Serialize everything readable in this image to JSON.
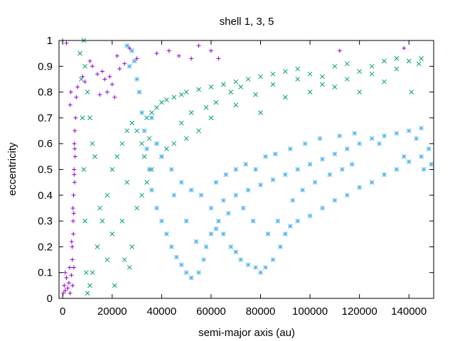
{
  "chart_data": {
    "type": "scatter",
    "title": "shell 1, 3, 5",
    "xlabel": "semi-major axis (au)",
    "ylabel": "eccentricity",
    "xlim": [
      -1500,
      150000
    ],
    "ylim": [
      0,
      1
    ],
    "xticks": [
      0,
      20000,
      40000,
      60000,
      80000,
      100000,
      120000,
      140000
    ],
    "xtick_labels": [
      "0",
      "20000",
      "40000",
      "60000",
      "80000",
      "100000",
      "120000",
      "140000"
    ],
    "yticks": [
      0,
      0.1,
      0.2,
      0.3,
      0.4,
      0.5,
      0.6,
      0.7,
      0.8,
      0.9,
      1
    ],
    "ytick_labels": [
      "0",
      "0.1",
      "0.2",
      "0.3",
      "0.4",
      "0.5",
      "0.6",
      "0.7",
      "0.8",
      "0.9",
      "1"
    ],
    "grid": false,
    "legend": "none",
    "series": [
      {
        "marker": "plus",
        "color": "#9400d3",
        "points": [
          [
            200,
            0.02
          ],
          [
            600,
            0.05
          ],
          [
            1000,
            0.03
          ],
          [
            1500,
            0.08
          ],
          [
            2000,
            0.04
          ],
          [
            2500,
            0.06
          ],
          [
            3000,
            0.02
          ],
          [
            3500,
            0.09
          ],
          [
            4000,
            0.05
          ],
          [
            4500,
            0.12
          ],
          [
            3800,
            0.2
          ],
          [
            4200,
            0.3
          ],
          [
            4400,
            0.4
          ],
          [
            4600,
            0.5
          ],
          [
            4700,
            0.6
          ],
          [
            4300,
            0.25
          ],
          [
            4800,
            0.45
          ],
          [
            5000,
            0.55
          ],
          [
            3900,
            0.15
          ],
          [
            4100,
            0.35
          ],
          [
            4900,
            0.65
          ],
          [
            5200,
            0.7
          ],
          [
            3000,
            0.75
          ],
          [
            3300,
            0.8
          ],
          [
            1000,
            0.1
          ],
          [
            2800,
            0.12
          ],
          [
            3600,
            0.22
          ],
          [
            4450,
            0.33
          ],
          [
            4650,
            0.48
          ],
          [
            4850,
            0.58
          ],
          [
            0,
            1.0
          ],
          [
            1500,
            0.99
          ],
          [
            5500,
            0.78
          ],
          [
            6000,
            0.82
          ],
          [
            8000,
            0.86
          ],
          [
            9000,
            0.84
          ],
          [
            12000,
            0.9
          ],
          [
            14000,
            0.87
          ],
          [
            16000,
            0.88
          ],
          [
            17000,
            0.85
          ],
          [
            15000,
            0.79
          ],
          [
            18000,
            0.8
          ],
          [
            19000,
            0.86
          ],
          [
            20000,
            0.83
          ],
          [
            21000,
            0.78
          ],
          [
            11000,
            0.92
          ],
          [
            22000,
            0.94
          ],
          [
            23000,
            0.89
          ],
          [
            25000,
            0.91
          ],
          [
            27000,
            0.97
          ],
          [
            30000,
            0.93
          ],
          [
            38000,
            0.95
          ],
          [
            43000,
            0.96
          ],
          [
            47000,
            0.94
          ],
          [
            52000,
            0.93
          ],
          [
            55000,
            0.98
          ],
          [
            60000,
            0.96
          ],
          [
            63000,
            0.93
          ],
          [
            112000,
            0.96
          ],
          [
            138000,
            0.97
          ]
        ]
      },
      {
        "marker": "cross",
        "color": "#009e73",
        "points": [
          [
            7000,
            0.95
          ],
          [
            7500,
            0.85
          ],
          [
            8000,
            0.7
          ],
          [
            8500,
            0.5
          ],
          [
            9000,
            0.3
          ],
          [
            9500,
            0.1
          ],
          [
            10000,
            0.02
          ],
          [
            11000,
            0.05
          ],
          [
            12000,
            0.1
          ],
          [
            14000,
            0.2
          ],
          [
            16000,
            0.3
          ],
          [
            18000,
            0.4
          ],
          [
            20000,
            0.5
          ],
          [
            22000,
            0.55
          ],
          [
            24000,
            0.6
          ],
          [
            26000,
            0.65
          ],
          [
            28000,
            0.68
          ],
          [
            30000,
            0.65
          ],
          [
            32000,
            0.6
          ],
          [
            34000,
            0.7
          ],
          [
            36000,
            0.72
          ],
          [
            38000,
            0.74
          ],
          [
            40000,
            0.76
          ],
          [
            42000,
            0.77
          ],
          [
            45000,
            0.78
          ],
          [
            48000,
            0.79
          ],
          [
            50000,
            0.8
          ],
          [
            55000,
            0.81
          ],
          [
            60000,
            0.82
          ],
          [
            65000,
            0.83
          ],
          [
            70000,
            0.84
          ],
          [
            75000,
            0.85
          ],
          [
            80000,
            0.86
          ],
          [
            85000,
            0.87
          ],
          [
            90000,
            0.88
          ],
          [
            95000,
            0.89
          ],
          [
            100000,
            0.87
          ],
          [
            105000,
            0.86
          ],
          [
            110000,
            0.9
          ],
          [
            115000,
            0.91
          ],
          [
            120000,
            0.88
          ],
          [
            125000,
            0.9
          ],
          [
            130000,
            0.92
          ],
          [
            135000,
            0.93
          ],
          [
            140000,
            0.92
          ],
          [
            145000,
            0.93
          ],
          [
            12000,
            0.6
          ],
          [
            15000,
            0.35
          ],
          [
            18000,
            0.15
          ],
          [
            20000,
            0.25
          ],
          [
            24000,
            0.3
          ],
          [
            26000,
            0.45
          ],
          [
            28000,
            0.2
          ],
          [
            30000,
            0.35
          ],
          [
            32000,
            0.4
          ],
          [
            34000,
            0.45
          ],
          [
            36000,
            0.5
          ],
          [
            40000,
            0.55
          ],
          [
            45000,
            0.6
          ],
          [
            50000,
            0.62
          ],
          [
            55000,
            0.65
          ],
          [
            60000,
            0.7
          ],
          [
            70000,
            0.75
          ],
          [
            80000,
            0.72
          ],
          [
            90000,
            0.78
          ],
          [
            100000,
            0.8
          ],
          [
            110000,
            0.82
          ],
          [
            120000,
            0.8
          ],
          [
            130000,
            0.84
          ],
          [
            10000,
            0.8
          ],
          [
            9000,
            0.9
          ],
          [
            8500,
            1.0
          ],
          [
            11000,
            0.7
          ],
          [
            13000,
            0.55
          ],
          [
            21000,
            0.05
          ],
          [
            25000,
            0.15
          ],
          [
            27000,
            0.12
          ],
          [
            33000,
            0.55
          ],
          [
            35000,
            0.62
          ],
          [
            38000,
            0.6
          ],
          [
            42000,
            0.58
          ],
          [
            48000,
            0.68
          ],
          [
            52000,
            0.72
          ],
          [
            58000,
            0.74
          ],
          [
            62000,
            0.76
          ],
          [
            68000,
            0.8
          ],
          [
            72000,
            0.82
          ],
          [
            78000,
            0.79
          ],
          [
            85000,
            0.83
          ],
          [
            95000,
            0.85
          ],
          [
            105000,
            0.83
          ],
          [
            115000,
            0.85
          ],
          [
            125000,
            0.87
          ],
          [
            135000,
            0.89
          ],
          [
            141000,
            0.8
          ],
          [
            144000,
            0.91
          ]
        ]
      },
      {
        "marker": "star",
        "color": "#56b4e9",
        "points": [
          [
            28000,
            0.96
          ],
          [
            29000,
            0.92
          ],
          [
            30000,
            0.85
          ],
          [
            31000,
            0.8
          ],
          [
            32000,
            0.72
          ],
          [
            33000,
            0.65
          ],
          [
            34000,
            0.58
          ],
          [
            35000,
            0.5
          ],
          [
            36000,
            0.42
          ],
          [
            38000,
            0.35
          ],
          [
            40000,
            0.3
          ],
          [
            42000,
            0.25
          ],
          [
            44000,
            0.2
          ],
          [
            46000,
            0.16
          ],
          [
            48000,
            0.13
          ],
          [
            50000,
            0.1
          ],
          [
            52000,
            0.08
          ],
          [
            55000,
            0.1
          ],
          [
            58000,
            0.2
          ],
          [
            60000,
            0.25
          ],
          [
            62000,
            0.27
          ],
          [
            65000,
            0.25
          ],
          [
            68000,
            0.2
          ],
          [
            70000,
            0.18
          ],
          [
            72000,
            0.15
          ],
          [
            75000,
            0.13
          ],
          [
            78000,
            0.12
          ],
          [
            80000,
            0.1
          ],
          [
            82000,
            0.12
          ],
          [
            85000,
            0.15
          ],
          [
            88000,
            0.2
          ],
          [
            90000,
            0.25
          ],
          [
            92000,
            0.28
          ],
          [
            95000,
            0.3
          ],
          [
            100000,
            0.32
          ],
          [
            105000,
            0.35
          ],
          [
            110000,
            0.38
          ],
          [
            115000,
            0.4
          ],
          [
            120000,
            0.43
          ],
          [
            125000,
            0.45
          ],
          [
            130000,
            0.48
          ],
          [
            135000,
            0.5
          ],
          [
            140000,
            0.53
          ],
          [
            145000,
            0.55
          ],
          [
            148000,
            0.58
          ],
          [
            60000,
            0.35
          ],
          [
            65000,
            0.38
          ],
          [
            70000,
            0.4
          ],
          [
            75000,
            0.42
          ],
          [
            80000,
            0.44
          ],
          [
            85000,
            0.46
          ],
          [
            90000,
            0.48
          ],
          [
            95000,
            0.5
          ],
          [
            100000,
            0.52
          ],
          [
            105000,
            0.54
          ],
          [
            110000,
            0.56
          ],
          [
            115000,
            0.58
          ],
          [
            120000,
            0.6
          ],
          [
            125000,
            0.62
          ],
          [
            130000,
            0.63
          ],
          [
            135000,
            0.64
          ],
          [
            140000,
            0.65
          ],
          [
            145000,
            0.66
          ],
          [
            26000,
            0.98
          ],
          [
            27000,
            0.9
          ],
          [
            36000,
            0.7
          ],
          [
            38000,
            0.6
          ],
          [
            40000,
            0.55
          ],
          [
            44000,
            0.5
          ],
          [
            48000,
            0.45
          ],
          [
            52000,
            0.42
          ],
          [
            56000,
            0.4
          ],
          [
            62000,
            0.45
          ],
          [
            66000,
            0.48
          ],
          [
            70000,
            0.5
          ],
          [
            74000,
            0.52
          ],
          [
            78000,
            0.5
          ],
          [
            82000,
            0.55
          ],
          [
            86000,
            0.56
          ],
          [
            92000,
            0.58
          ],
          [
            98000,
            0.6
          ],
          [
            104000,
            0.62
          ],
          [
            112000,
            0.63
          ],
          [
            118000,
            0.64
          ],
          [
            128000,
            0.6
          ],
          [
            138000,
            0.55
          ],
          [
            143000,
            0.62
          ],
          [
            146000,
            0.5
          ],
          [
            149000,
            0.52
          ],
          [
            45000,
            0.4
          ],
          [
            50000,
            0.3
          ],
          [
            54000,
            0.22
          ],
          [
            57000,
            0.15
          ],
          [
            63000,
            0.3
          ],
          [
            67000,
            0.33
          ],
          [
            73000,
            0.35
          ],
          [
            77000,
            0.3
          ],
          [
            83000,
            0.25
          ],
          [
            87000,
            0.3
          ],
          [
            93000,
            0.38
          ],
          [
            97000,
            0.42
          ],
          [
            102000,
            0.45
          ],
          [
            108000,
            0.48
          ],
          [
            113000,
            0.5
          ],
          [
            117000,
            0.52
          ]
        ]
      }
    ]
  }
}
